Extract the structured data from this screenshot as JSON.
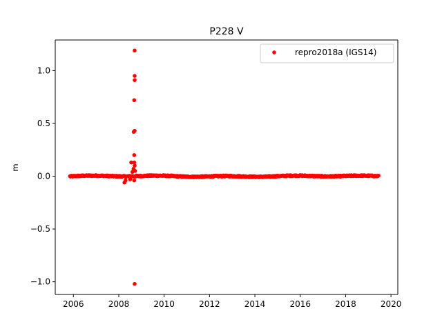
{
  "chart_data": {
    "type": "scatter",
    "title": "P228 V",
    "xlabel": "",
    "ylabel": "m",
    "xlim": [
      2005.2,
      2020.3
    ],
    "ylim": [
      -1.12,
      1.29
    ],
    "x_ticks": [
      2006,
      2008,
      2010,
      2012,
      2014,
      2016,
      2018,
      2020
    ],
    "x_tick_labels": [
      "2006",
      "2008",
      "2010",
      "2012",
      "2014",
      "2016",
      "2018",
      "2020"
    ],
    "y_ticks": [
      -1.0,
      -0.5,
      0.0,
      0.5,
      1.0
    ],
    "y_tick_labels": [
      "−1.0",
      "−0.5",
      "0.0",
      "0.5",
      "1.0"
    ],
    "grid": false,
    "legend_position": "top-right",
    "series": [
      {
        "name": "repro2018a (IGS14)",
        "color": "#ff0000",
        "marker": "circle",
        "time_range": [
          2005.85,
          2019.45
        ],
        "baseline_noise_m": 0.008,
        "outliers": [
          {
            "x": 2008.7,
            "y": 1.19
          },
          {
            "x": 2008.7,
            "y": 0.95
          },
          {
            "x": 2008.7,
            "y": 0.91
          },
          {
            "x": 2008.68,
            "y": 0.72
          },
          {
            "x": 2008.66,
            "y": 0.42
          },
          {
            "x": 2008.7,
            "y": 0.43
          },
          {
            "x": 2008.68,
            "y": 0.2
          },
          {
            "x": 2008.55,
            "y": 0.13
          },
          {
            "x": 2008.68,
            "y": 0.13
          },
          {
            "x": 2008.7,
            "y": 0.1
          },
          {
            "x": 2008.65,
            "y": 0.07
          },
          {
            "x": 2008.72,
            "y": 0.05
          },
          {
            "x": 2008.6,
            "y": 0.04
          },
          {
            "x": 2008.25,
            "y": -0.06
          },
          {
            "x": 2008.3,
            "y": -0.04
          },
          {
            "x": 2008.5,
            "y": -0.03
          },
          {
            "x": 2008.68,
            "y": -0.04
          },
          {
            "x": 2008.7,
            "y": -1.02
          }
        ]
      }
    ]
  }
}
